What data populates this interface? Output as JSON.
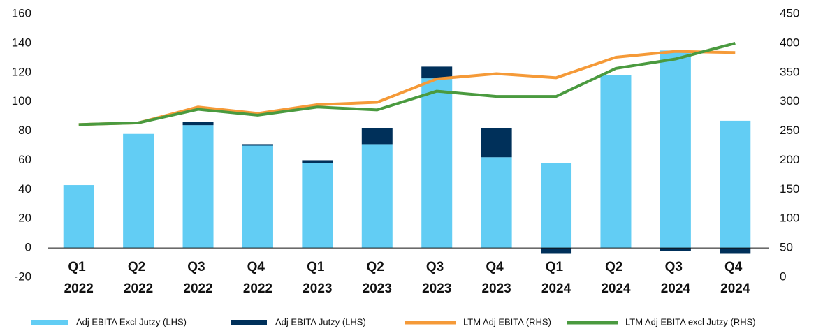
{
  "chart_data": {
    "type": "bar",
    "categories": [
      "Q1 2022",
      "Q2 2022",
      "Q3 2022",
      "Q4 2022",
      "Q1 2023",
      "Q2 2023",
      "Q3 2023",
      "Q4 2023",
      "Q1 2024",
      "Q2 2024",
      "Q3 2024",
      "Q4 2024"
    ],
    "stacked": true,
    "series": [
      {
        "name": "Adj EBITA Excl Jutzy (LHS)",
        "type": "bar",
        "color": "#62cdf4",
        "values": [
          43,
          78,
          84,
          70,
          58,
          71,
          116,
          62,
          58,
          118,
          135,
          87
        ]
      },
      {
        "name": "Adj EBITA Jutzy (LHS)",
        "type": "bar",
        "color": "#00305a",
        "values": [
          0,
          0,
          2,
          1,
          2,
          11,
          8,
          20,
          -4,
          0,
          -2,
          -4
        ]
      },
      {
        "name": "LTM Adj EBITA (RHS)",
        "type": "line",
        "axis": "y2",
        "color": "#f59a38",
        "values": [
          261,
          264,
          291,
          280,
          295,
          299,
          339,
          348,
          341,
          376,
          386,
          384
        ]
      },
      {
        "name": "LTM Adj EBITA  excl Jutzy (RHS)",
        "type": "line",
        "axis": "y2",
        "color": "#4a9a3f",
        "values": [
          261,
          264,
          287,
          277,
          291,
          286,
          318,
          309,
          309,
          357,
          373,
          400
        ]
      }
    ],
    "ylim": [
      -20,
      160
    ],
    "yticks": [
      -20,
      0,
      20,
      40,
      60,
      80,
      100,
      120,
      140,
      160
    ],
    "y2lim": [
      0,
      450
    ],
    "y2ticks": [
      0,
      50,
      100,
      150,
      200,
      250,
      300,
      350,
      400,
      450
    ],
    "legend": "bottom"
  }
}
